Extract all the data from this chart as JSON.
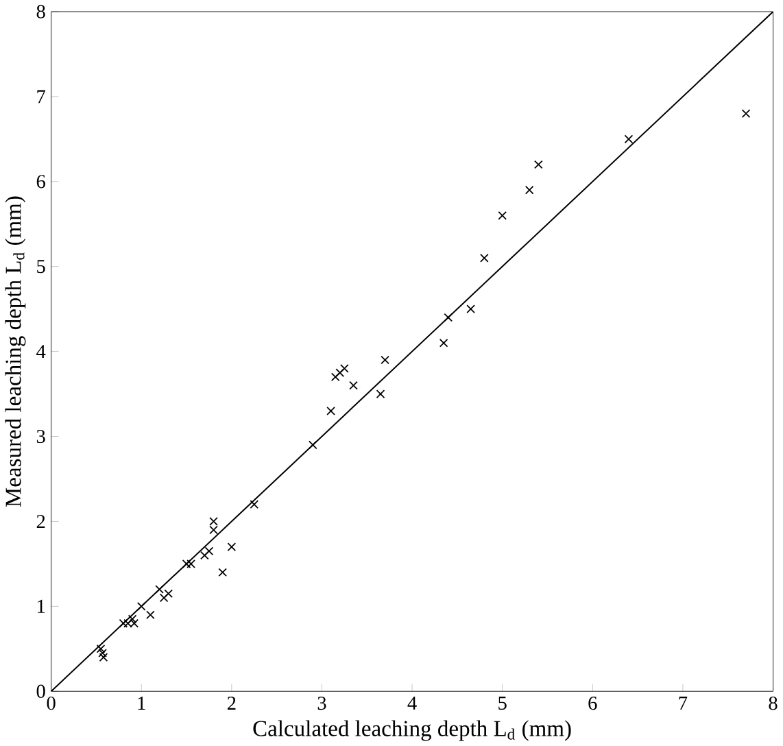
{
  "chart_data": {
    "type": "scatter",
    "xlabel": "Calculated leaching depth L$_{d}$ (mm)",
    "ylabel": "Measured leaching depth L$_{d}$ (mm)",
    "xlim": [
      0,
      8
    ],
    "ylim": [
      0,
      8
    ],
    "xticks": [
      0,
      1,
      2,
      3,
      4,
      5,
      6,
      7,
      8
    ],
    "yticks": [
      0,
      1,
      2,
      3,
      4,
      5,
      6,
      7,
      8
    ],
    "marker": "cross",
    "grid": false,
    "series": [
      {
        "color": "#000000",
        "x": [
          0.55,
          0.57,
          0.58,
          0.8,
          0.85,
          0.9,
          0.92,
          1.0,
          1.1,
          1.2,
          1.25,
          1.3,
          1.5,
          1.55,
          1.7,
          1.75,
          1.8,
          1.8,
          1.9,
          2.0,
          2.25,
          2.9,
          3.1,
          3.15,
          3.2,
          3.25,
          3.35,
          3.65,
          3.7,
          4.35,
          4.4,
          4.65,
          4.8,
          5.0,
          5.3,
          5.4,
          6.4,
          7.7
        ],
        "values": [
          0.5,
          0.45,
          0.4,
          0.8,
          0.8,
          0.85,
          0.8,
          1.0,
          0.9,
          1.2,
          1.1,
          1.15,
          1.5,
          1.5,
          1.6,
          1.65,
          1.9,
          2.0,
          1.4,
          1.7,
          2.2,
          2.9,
          3.3,
          3.7,
          3.75,
          3.8,
          3.6,
          3.5,
          3.9,
          4.1,
          4.4,
          4.5,
          5.1,
          5.6,
          5.9,
          6.2,
          6.5,
          6.8
        ]
      },
      {
        "type": "line",
        "color": "#000000",
        "line_style": "solid",
        "marker": "none",
        "x": [
          0,
          8
        ],
        "values": [
          0,
          8
        ]
      }
    ]
  }
}
